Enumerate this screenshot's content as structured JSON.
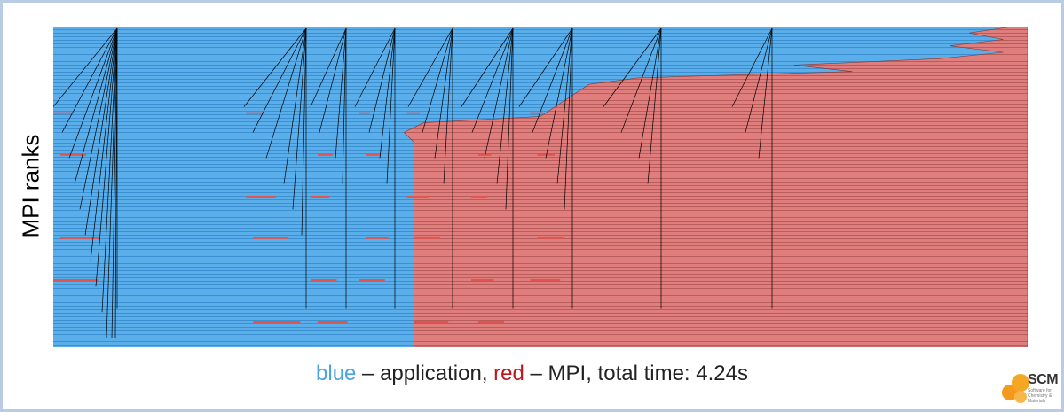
{
  "chart_data": {
    "type": "area",
    "title": "",
    "ylabel": "MPI ranks",
    "xlabel": "",
    "xlim": [
      0,
      4.24
    ],
    "ylim": [
      0,
      64
    ],
    "series": [
      {
        "name": "application",
        "color": "#5aaeea"
      },
      {
        "name": "MPI",
        "color": "#e07d7d"
      }
    ],
    "mpi_boundary": {
      "rank_fraction": [
        0.0,
        0.02,
        0.04,
        0.06,
        0.08,
        0.1,
        0.12,
        0.14,
        0.16,
        0.18,
        0.2,
        0.22,
        0.24,
        0.26,
        0.28,
        0.3,
        0.33,
        0.36,
        0.4,
        1.0
      ],
      "time_fraction": [
        0.985,
        0.94,
        0.975,
        0.92,
        0.975,
        0.91,
        0.76,
        0.82,
        0.6,
        0.55,
        0.54,
        0.53,
        0.52,
        0.51,
        0.5,
        0.38,
        0.36,
        0.37,
        0.37,
        0.37
      ]
    },
    "caption": {
      "blue_word": "blue",
      "sep1": " – application, ",
      "red_word": "red",
      "sep2": " – MPI, total time: 4.24s"
    }
  },
  "logo": {
    "text": "SCM",
    "sub": "Software for Chemistry & Materials"
  },
  "colors": {
    "application": "#5aaeea",
    "mpi": "#e07d7d",
    "frame": "#b9cce4"
  }
}
